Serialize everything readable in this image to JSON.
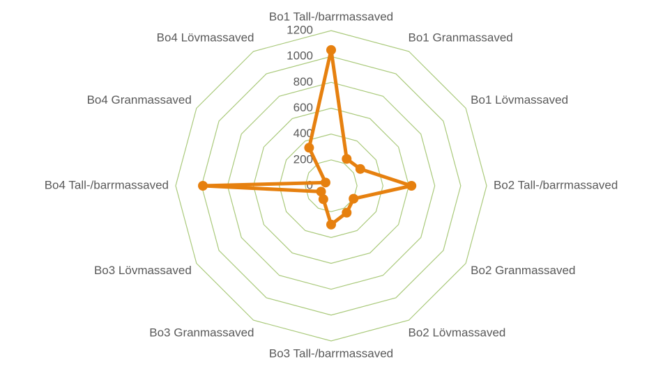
{
  "chart_data": {
    "type": "radar",
    "categories": [
      "Bo1 Tall-/barrmassaved",
      "Bo1 Granmassaved",
      "Bo1 Lövmassaved",
      "Bo2 Tall-/barrmassaved",
      "Bo2 Granmassaved",
      "Bo2 Lövmassaved",
      "Bo3 Tall-/barrmassaved",
      "Bo3 Granmassaved",
      "Bo3 Lövmassaved",
      "Bo4 Tall-/barrmassaved",
      "Bo4 Granmassaved",
      "Bo4 Lövmassaved"
    ],
    "values": [
      1050,
      240,
      260,
      620,
      200,
      240,
      300,
      120,
      90,
      990,
      50,
      340
    ],
    "color": "#e6800f",
    "grid_color": "#a9c97a",
    "ylim": [
      0,
      1200
    ],
    "yticks": [
      0,
      200,
      400,
      600,
      800,
      1000,
      1200
    ],
    "grid": true
  }
}
